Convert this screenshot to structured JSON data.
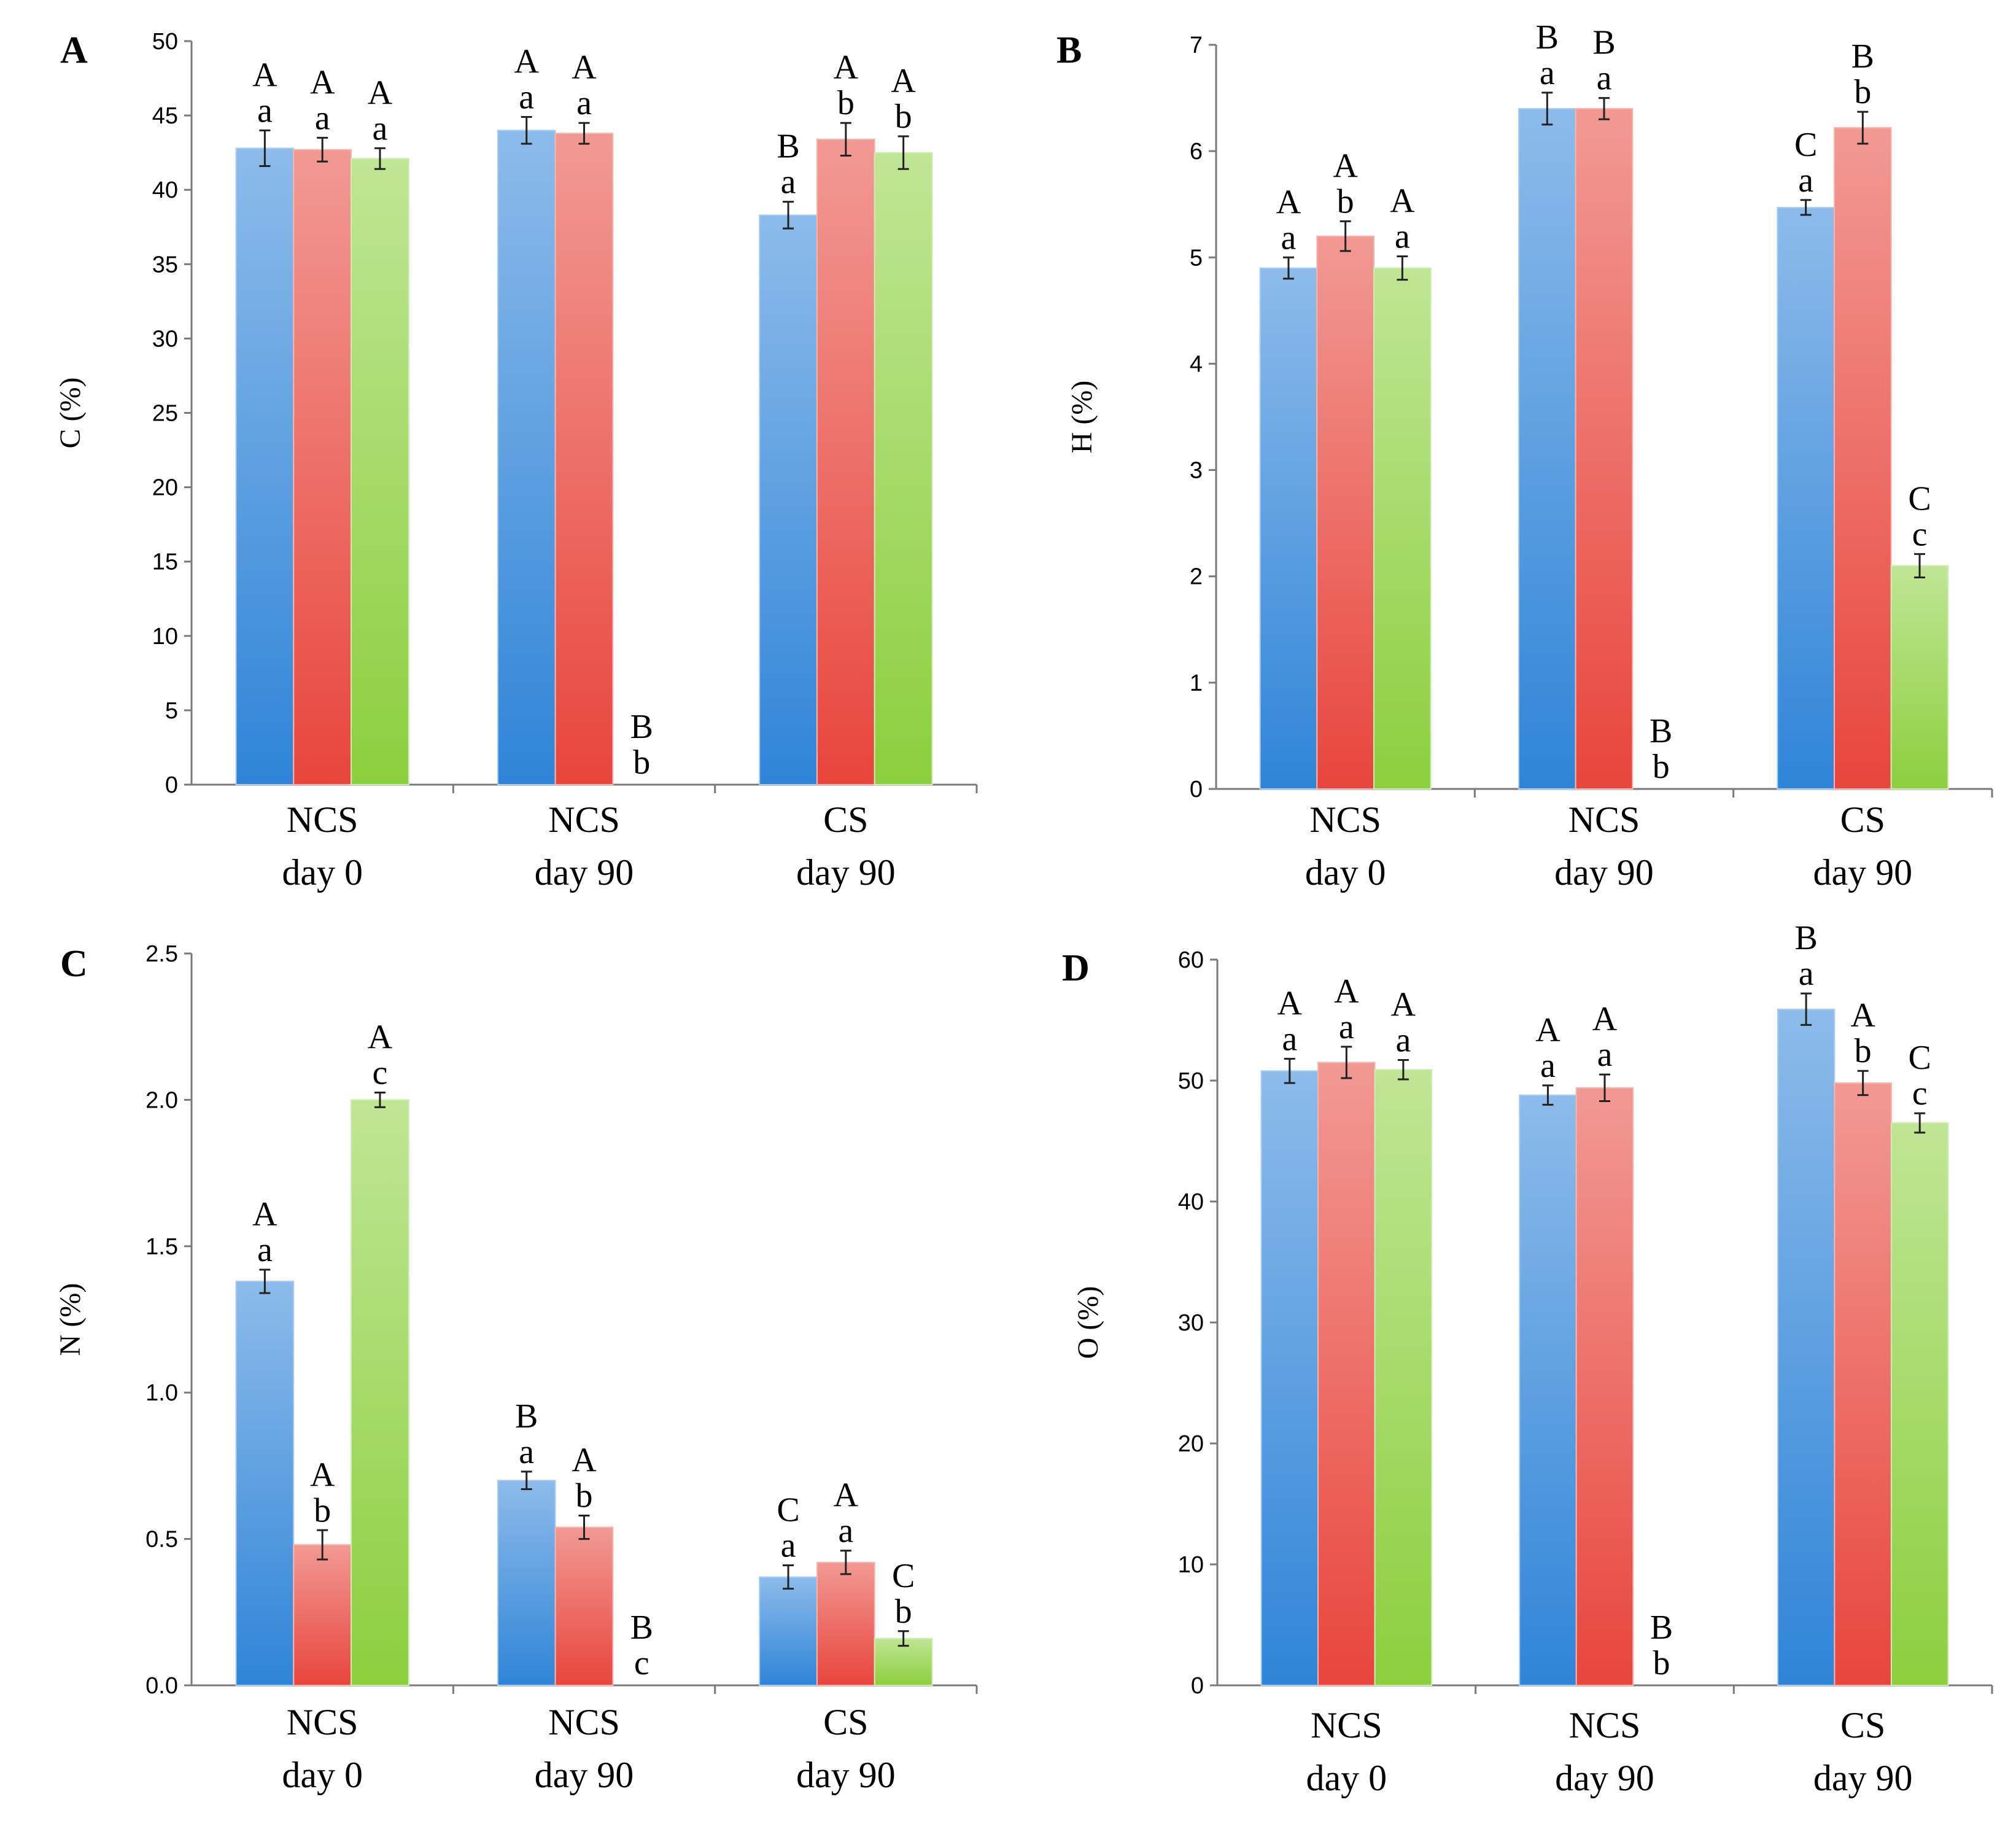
{
  "colors": {
    "blue": "#2f84d8",
    "red": "#e8453c",
    "green": "#8ccf3e",
    "axis": "#7a7a7a"
  },
  "chart_data": [
    {
      "type": "bar",
      "panel": "A",
      "ylabel": "C (%)",
      "ylim": [
        0,
        50
      ],
      "yticks": [
        "0",
        "5",
        "10",
        "15",
        "20",
        "25",
        "30",
        "35",
        "40",
        "45",
        "50"
      ],
      "categories": [
        [
          "NCS",
          "day 0"
        ],
        [
          "NCS",
          "day 90"
        ],
        [
          "CS",
          "day 90"
        ]
      ],
      "series": [
        {
          "color": "blue",
          "values": [
            42.8,
            44.0,
            38.3
          ],
          "errors": [
            1.2,
            0.9,
            0.9
          ],
          "labels": [
            [
              "A",
              "a"
            ],
            [
              "A",
              "a"
            ],
            [
              "B",
              "a"
            ]
          ]
        },
        {
          "color": "red",
          "values": [
            42.7,
            43.8,
            43.4
          ],
          "errors": [
            0.8,
            0.7,
            1.1
          ],
          "labels": [
            [
              "A",
              "a"
            ],
            [
              "A",
              "a"
            ],
            [
              "A",
              "b"
            ]
          ]
        },
        {
          "color": "green",
          "values": [
            42.1,
            0,
            42.5
          ],
          "errors": [
            0.7,
            0,
            1.1
          ],
          "labels": [
            [
              "A",
              "a"
            ],
            [
              "B",
              "b"
            ],
            [
              "A",
              "b"
            ]
          ]
        }
      ]
    },
    {
      "type": "bar",
      "panel": "B",
      "ylabel": "H (%)",
      "ylim": [
        0,
        7
      ],
      "yticks": [
        "0",
        "1",
        "2",
        "3",
        "4",
        "5",
        "6",
        "7"
      ],
      "categories": [
        [
          "NCS",
          "day 0"
        ],
        [
          "NCS",
          "day 90"
        ],
        [
          "CS",
          "day 90"
        ]
      ],
      "series": [
        {
          "color": "blue",
          "values": [
            4.9,
            6.4,
            5.47
          ],
          "errors": [
            0.1,
            0.15,
            0.07
          ],
          "labels": [
            [
              "A",
              "a"
            ],
            [
              "B",
              "a"
            ],
            [
              "C",
              "a"
            ]
          ]
        },
        {
          "color": "red",
          "values": [
            5.2,
            6.4,
            6.22
          ],
          "errors": [
            0.14,
            0.1,
            0.15
          ],
          "labels": [
            [
              "A",
              "b"
            ],
            [
              "B",
              "a"
            ],
            [
              "B",
              "b"
            ]
          ]
        },
        {
          "color": "green",
          "values": [
            4.9,
            0,
            2.1
          ],
          "errors": [
            0.11,
            0,
            0.11
          ],
          "labels": [
            [
              "A",
              "a"
            ],
            [
              "B",
              "b"
            ],
            [
              "C",
              "c"
            ]
          ]
        }
      ]
    },
    {
      "type": "bar",
      "panel": "C",
      "ylabel": "N (%)",
      "ylim": [
        0,
        2.5
      ],
      "yticks": [
        "0.0",
        "0.5",
        "1.0",
        "1.5",
        "2.0",
        "2.5"
      ],
      "categories": [
        [
          "NCS",
          "day 0"
        ],
        [
          "NCS",
          "day 90"
        ],
        [
          "CS",
          "day 90"
        ]
      ],
      "series": [
        {
          "color": "blue",
          "values": [
            1.38,
            0.7,
            0.37
          ],
          "errors": [
            0.04,
            0.03,
            0.04
          ],
          "labels": [
            [
              "A",
              "a"
            ],
            [
              "B",
              "a"
            ],
            [
              "C",
              "a"
            ]
          ]
        },
        {
          "color": "red",
          "values": [
            0.48,
            0.54,
            0.42
          ],
          "errors": [
            0.05,
            0.04,
            0.04
          ],
          "labels": [
            [
              "A",
              "b"
            ],
            [
              "A",
              "b"
            ],
            [
              "A",
              "a"
            ]
          ]
        },
        {
          "color": "green",
          "values": [
            2.0,
            0,
            0.16
          ],
          "errors": [
            0.025,
            0,
            0.025
          ],
          "labels": [
            [
              "A",
              "c"
            ],
            [
              "B",
              "c"
            ],
            [
              "C",
              "b"
            ]
          ]
        }
      ]
    },
    {
      "type": "bar",
      "panel": "D",
      "ylabel": "O (%)",
      "ylim": [
        0,
        60
      ],
      "yticks": [
        "0",
        "10",
        "20",
        "30",
        "40",
        "50",
        "60"
      ],
      "categories": [
        [
          "NCS",
          "day 0"
        ],
        [
          "NCS",
          "day 90"
        ],
        [
          "CS",
          "day 90"
        ]
      ],
      "series": [
        {
          "color": "blue",
          "values": [
            50.8,
            48.8,
            55.9
          ],
          "errors": [
            1.0,
            0.8,
            1.3
          ],
          "labels": [
            [
              "A",
              "a"
            ],
            [
              "A",
              "a"
            ],
            [
              "B",
              "a"
            ]
          ]
        },
        {
          "color": "red",
          "values": [
            51.5,
            49.4,
            49.8
          ],
          "errors": [
            1.3,
            1.1,
            1.0
          ],
          "labels": [
            [
              "A",
              "a"
            ],
            [
              "A",
              "a"
            ],
            [
              "A",
              "b"
            ]
          ]
        },
        {
          "color": "green",
          "values": [
            50.9,
            0,
            46.5
          ],
          "errors": [
            0.8,
            0,
            0.8
          ],
          "labels": [
            [
              "A",
              "a"
            ],
            [
              "B",
              "b"
            ],
            [
              "C",
              "c"
            ]
          ]
        }
      ]
    }
  ]
}
